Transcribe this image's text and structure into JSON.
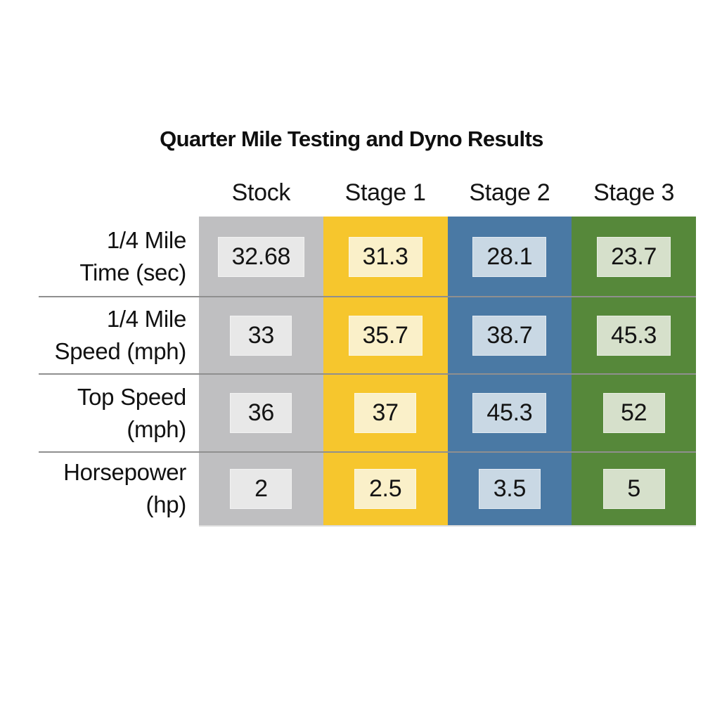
{
  "title": "Quarter Mile Testing and Dyno Results",
  "table": {
    "columns": [
      {
        "label": "Stock",
        "color": "#bfbfc1",
        "box_color": "#e8e8e8"
      },
      {
        "label": "Stage 1",
        "color": "#f6c62d",
        "box_color": "#faf0c9"
      },
      {
        "label": "Stage 2",
        "color": "#4a79a4",
        "box_color": "#c9d8e4"
      },
      {
        "label": "Stage 3",
        "color": "#56883a",
        "box_color": "#d6e0cb"
      }
    ],
    "rows": [
      {
        "label_line1": "1/4 Mile",
        "label_line2": "Time (sec)",
        "values": [
          "32.68",
          "31.3",
          "28.1",
          "23.7"
        ]
      },
      {
        "label_line1": "1/4 Mile",
        "label_line2": "Speed (mph)",
        "values": [
          "33",
          "35.7",
          "38.7",
          "45.3"
        ]
      },
      {
        "label_line1": "Top Speed",
        "label_line2": "(mph)",
        "values": [
          "36",
          "37",
          "45.3",
          "52"
        ]
      },
      {
        "label_line1": "Horsepower",
        "label_line2": "(hp)",
        "values": [
          "2",
          "2.5",
          "3.5",
          "5"
        ]
      }
    ]
  },
  "chart_data": {
    "type": "table",
    "title": "Quarter Mile Testing and Dyno Results",
    "columns": [
      "Stock",
      "Stage 1",
      "Stage 2",
      "Stage 3"
    ],
    "row_labels": [
      "1/4 Mile Time (sec)",
      "1/4 Mile Speed (mph)",
      "Top Speed (mph)",
      "Horsepower (hp)"
    ],
    "series": [
      {
        "name": "1/4 Mile Time (sec)",
        "values": [
          32.68,
          31.3,
          28.1,
          23.7
        ]
      },
      {
        "name": "1/4 Mile Speed (mph)",
        "values": [
          33,
          35.7,
          38.7,
          45.3
        ]
      },
      {
        "name": "Top Speed (mph)",
        "values": [
          36,
          37,
          45.3,
          52
        ]
      },
      {
        "name": "Horsepower (hp)",
        "values": [
          2,
          2.5,
          3.5,
          5
        ]
      }
    ],
    "column_colors": [
      "#bfbfc1",
      "#f6c62d",
      "#4a79a4",
      "#56883a"
    ],
    "layout": "matrix table; metric rows by tuning-stage columns; value chips on colored column bands"
  }
}
